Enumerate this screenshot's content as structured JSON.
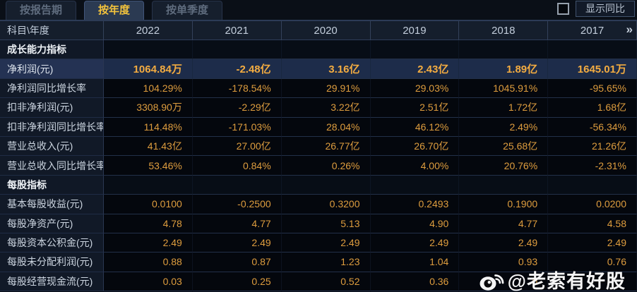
{
  "tabs": [
    {
      "key": "by-report-period",
      "label": "按报告期",
      "active": false
    },
    {
      "key": "by-year",
      "label": "按年度",
      "active": true
    },
    {
      "key": "by-quarter",
      "label": "按单季度",
      "active": false
    }
  ],
  "controls": {
    "yoy_checkbox_checked": false,
    "yoy_toggle_label": "显示同比"
  },
  "table": {
    "corner_header": "科目\\年度",
    "year_columns": [
      "2022",
      "2021",
      "2020",
      "2019",
      "2018",
      "2017"
    ],
    "more_icon": "»",
    "rows": [
      {
        "type": "section",
        "label": "成长能力指标"
      },
      {
        "type": "data",
        "label": "净利润(元)",
        "highlight": true,
        "values": [
          "1064.84万",
          "-2.48亿",
          "3.16亿",
          "2.43亿",
          "1.89亿",
          "1645.01万"
        ]
      },
      {
        "type": "data",
        "label": "净利润同比增长率",
        "values": [
          "104.29%",
          "-178.54%",
          "29.91%",
          "29.03%",
          "1045.91%",
          "-95.65%"
        ]
      },
      {
        "type": "data",
        "label": "扣非净利润(元)",
        "values": [
          "3308.90万",
          "-2.29亿",
          "3.22亿",
          "2.51亿",
          "1.72亿",
          "1.68亿"
        ]
      },
      {
        "type": "data",
        "label": "扣非净利润同比增长率",
        "values": [
          "114.48%",
          "-171.03%",
          "28.04%",
          "46.12%",
          "2.49%",
          "-56.34%"
        ]
      },
      {
        "type": "data",
        "label": "营业总收入(元)",
        "values": [
          "41.43亿",
          "27.00亿",
          "26.77亿",
          "26.70亿",
          "25.68亿",
          "21.26亿"
        ]
      },
      {
        "type": "data",
        "label": "营业总收入同比增长率",
        "values": [
          "53.46%",
          "0.84%",
          "0.26%",
          "4.00%",
          "20.76%",
          "-2.31%"
        ]
      },
      {
        "type": "section",
        "label": "每股指标"
      },
      {
        "type": "data",
        "label": "基本每股收益(元)",
        "values": [
          "0.0100",
          "-0.2500",
          "0.3200",
          "0.2493",
          "0.1900",
          "0.0200"
        ]
      },
      {
        "type": "data",
        "label": "每股净资产(元)",
        "values": [
          "4.78",
          "4.77",
          "5.13",
          "4.90",
          "4.77",
          "4.58"
        ]
      },
      {
        "type": "data",
        "label": "每股资本公积金(元)",
        "values": [
          "2.49",
          "2.49",
          "2.49",
          "2.49",
          "2.49",
          "2.49"
        ]
      },
      {
        "type": "data",
        "label": "每股未分配利润(元)",
        "values": [
          "0.88",
          "0.87",
          "1.23",
          "1.04",
          "0.93",
          "0.76"
        ]
      },
      {
        "type": "data",
        "label": "每股经营现金流(元)",
        "values": [
          "0.03",
          "0.25",
          "0.52",
          "0.36",
          "0",
          ""
        ]
      }
    ]
  },
  "watermark": {
    "logo": "weibo-icon",
    "handle": "@老索有好股"
  },
  "colors": {
    "background": "#070b12",
    "tab_active_text": "#f3c33c",
    "value_orange": "#de9d3e",
    "highlight_row_bg": "#1d2c4a",
    "header_bg": "#151e2c",
    "grid_line": "#253452"
  }
}
